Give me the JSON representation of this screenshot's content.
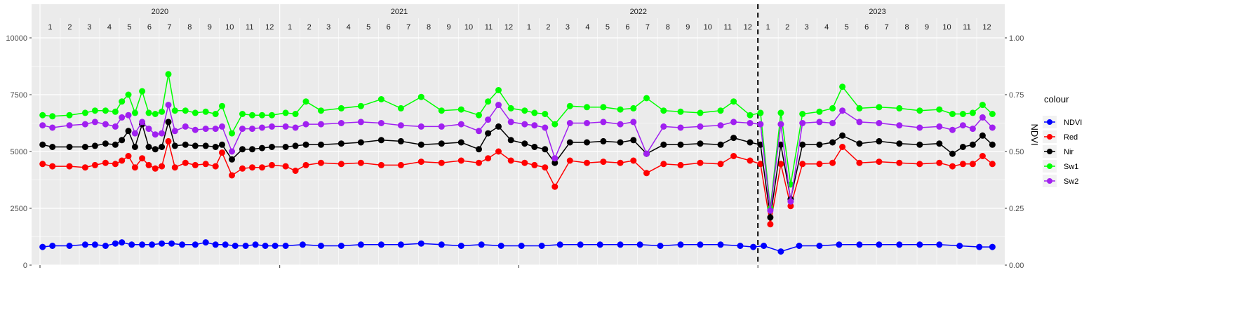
{
  "chart_data": {
    "type": "line",
    "ylabel": "",
    "y2label": "NDVI",
    "ylim": [
      0,
      10000
    ],
    "y2lim": [
      0,
      1
    ],
    "y_ticks": [
      "0",
      "2500",
      "5000",
      "7500",
      "10000"
    ],
    "y2_ticks": [
      "0.00",
      "0.25",
      "0.50",
      "0.75",
      "1.00"
    ],
    "years": [
      "2020",
      "2021",
      "2022",
      "2023"
    ],
    "months": [
      "1",
      "2",
      "3",
      "4",
      "5",
      "6",
      "7",
      "8",
      "9",
      "10",
      "11",
      "12"
    ],
    "x_start": "2020-01-01",
    "x_end": "2023-12-31",
    "vline": "2023-01-01",
    "legend_title": "colour",
    "legend_position": "right",
    "grid": true,
    "series": [
      {
        "name": "NDVI",
        "color": "#0000ff",
        "dates": [
          "2020-01-05",
          "2020-01-20",
          "2020-02-15",
          "2020-03-10",
          "2020-03-25",
          "2020-04-10",
          "2020-04-25",
          "2020-05-05",
          "2020-05-20",
          "2020-06-05",
          "2020-06-20",
          "2020-07-05",
          "2020-07-20",
          "2020-08-05",
          "2020-08-25",
          "2020-09-10",
          "2020-09-25",
          "2020-10-10",
          "2020-10-25",
          "2020-11-10",
          "2020-11-25",
          "2020-12-10",
          "2020-12-25",
          "2021-01-10",
          "2021-02-05",
          "2021-03-05",
          "2021-04-05",
          "2021-05-05",
          "2021-06-05",
          "2021-07-05",
          "2021-08-05",
          "2021-09-05",
          "2021-10-05",
          "2021-11-05",
          "2021-12-05",
          "2022-01-05",
          "2022-02-05",
          "2022-03-05",
          "2022-04-05",
          "2022-05-05",
          "2022-06-05",
          "2022-07-05",
          "2022-08-05",
          "2022-09-05",
          "2022-10-05",
          "2022-11-05",
          "2022-12-05",
          "2022-12-25",
          "2023-01-10",
          "2023-02-05",
          "2023-03-05",
          "2023-04-05",
          "2023-05-05",
          "2023-06-05",
          "2023-07-05",
          "2023-08-05",
          "2023-09-05",
          "2023-10-05",
          "2023-11-05",
          "2023-12-05",
          "2023-12-25"
        ],
        "values": [
          0.08,
          0.085,
          0.085,
          0.09,
          0.09,
          0.085,
          0.095,
          0.1,
          0.09,
          0.09,
          0.09,
          0.095,
          0.095,
          0.09,
          0.09,
          0.1,
          0.09,
          0.09,
          0.085,
          0.085,
          0.09,
          0.085,
          0.085,
          0.085,
          0.09,
          0.085,
          0.085,
          0.09,
          0.09,
          0.09,
          0.095,
          0.09,
          0.085,
          0.09,
          0.085,
          0.085,
          0.085,
          0.09,
          0.09,
          0.09,
          0.09,
          0.09,
          0.085,
          0.09,
          0.09,
          0.09,
          0.085,
          0.08,
          0.085,
          0.06,
          0.085,
          0.085,
          0.09,
          0.09,
          0.09,
          0.09,
          0.09,
          0.09,
          0.085,
          0.08,
          0.08
        ]
      },
      {
        "name": "Red",
        "color": "#ff0000",
        "dates": [
          "2020-01-05",
          "2020-01-20",
          "2020-02-15",
          "2020-03-10",
          "2020-03-25",
          "2020-04-10",
          "2020-04-25",
          "2020-05-05",
          "2020-05-15",
          "2020-05-25",
          "2020-06-05",
          "2020-06-15",
          "2020-06-25",
          "2020-07-05",
          "2020-07-15",
          "2020-07-25",
          "2020-08-10",
          "2020-08-25",
          "2020-09-10",
          "2020-09-25",
          "2020-10-05",
          "2020-10-20",
          "2020-11-05",
          "2020-11-20",
          "2020-12-05",
          "2020-12-20",
          "2021-01-10",
          "2021-01-25",
          "2021-02-10",
          "2021-03-05",
          "2021-04-05",
          "2021-05-05",
          "2021-06-05",
          "2021-07-05",
          "2021-08-05",
          "2021-09-05",
          "2021-10-05",
          "2021-11-01",
          "2021-11-15",
          "2021-12-01",
          "2021-12-20",
          "2022-01-10",
          "2022-01-25",
          "2022-02-10",
          "2022-02-25",
          "2022-03-20",
          "2022-04-15",
          "2022-05-10",
          "2022-06-05",
          "2022-06-25",
          "2022-07-15",
          "2022-08-10",
          "2022-09-05",
          "2022-10-05",
          "2022-11-05",
          "2022-11-25",
          "2022-12-20",
          "2023-01-05",
          "2023-01-20",
          "2023-02-05",
          "2023-02-20",
          "2023-03-10",
          "2023-04-05",
          "2023-04-25",
          "2023-05-10",
          "2023-06-05",
          "2023-07-05",
          "2023-08-05",
          "2023-09-05",
          "2023-10-05",
          "2023-10-25",
          "2023-11-10",
          "2023-11-25",
          "2023-12-10",
          "2023-12-25"
        ],
        "values": [
          4450,
          4350,
          4350,
          4300,
          4400,
          4500,
          4450,
          4600,
          4800,
          4300,
          4700,
          4400,
          4250,
          4350,
          5450,
          4300,
          4500,
          4400,
          4450,
          4350,
          4950,
          3950,
          4250,
          4300,
          4300,
          4400,
          4350,
          4150,
          4400,
          4500,
          4450,
          4500,
          4400,
          4400,
          4550,
          4500,
          4600,
          4500,
          4700,
          5000,
          4600,
          4500,
          4400,
          4300,
          3450,
          4600,
          4500,
          4550,
          4500,
          4600,
          4050,
          4450,
          4400,
          4500,
          4450,
          4800,
          4600,
          4450,
          1800,
          4450,
          2600,
          4450,
          4450,
          4500,
          5200,
          4500,
          4550,
          4500,
          4450,
          4500,
          4350,
          4450,
          4450,
          4800,
          4450
        ]
      },
      {
        "name": "Nir",
        "color": "#000000",
        "dates": [
          "2020-01-05",
          "2020-01-20",
          "2020-02-15",
          "2020-03-10",
          "2020-03-25",
          "2020-04-10",
          "2020-04-25",
          "2020-05-05",
          "2020-05-15",
          "2020-05-25",
          "2020-06-05",
          "2020-06-15",
          "2020-06-25",
          "2020-07-05",
          "2020-07-15",
          "2020-07-25",
          "2020-08-10",
          "2020-08-25",
          "2020-09-10",
          "2020-09-25",
          "2020-10-05",
          "2020-10-20",
          "2020-11-05",
          "2020-11-20",
          "2020-12-05",
          "2020-12-20",
          "2021-01-10",
          "2021-01-25",
          "2021-02-10",
          "2021-03-05",
          "2021-04-05",
          "2021-05-05",
          "2021-06-05",
          "2021-07-05",
          "2021-08-05",
          "2021-09-05",
          "2021-10-05",
          "2021-11-01",
          "2021-11-15",
          "2021-12-01",
          "2021-12-20",
          "2022-01-10",
          "2022-01-25",
          "2022-02-10",
          "2022-02-25",
          "2022-03-20",
          "2022-04-15",
          "2022-05-10",
          "2022-06-05",
          "2022-06-25",
          "2022-07-15",
          "2022-08-10",
          "2022-09-05",
          "2022-10-05",
          "2022-11-05",
          "2022-11-25",
          "2022-12-20",
          "2023-01-05",
          "2023-01-20",
          "2023-02-05",
          "2023-02-20",
          "2023-03-10",
          "2023-04-05",
          "2023-04-25",
          "2023-05-10",
          "2023-06-05",
          "2023-07-05",
          "2023-08-05",
          "2023-09-05",
          "2023-10-05",
          "2023-10-25",
          "2023-11-10",
          "2023-11-25",
          "2023-12-10",
          "2023-12-25"
        ],
        "values": [
          5300,
          5200,
          5200,
          5200,
          5250,
          5350,
          5300,
          5500,
          5900,
          5200,
          6200,
          5200,
          5100,
          5200,
          6300,
          5250,
          5300,
          5250,
          5250,
          5200,
          5300,
          4650,
          5100,
          5100,
          5150,
          5200,
          5200,
          5250,
          5300,
          5300,
          5350,
          5400,
          5500,
          5450,
          5300,
          5350,
          5400,
          5100,
          5800,
          6100,
          5500,
          5350,
          5200,
          5100,
          4500,
          5400,
          5400,
          5450,
          5400,
          5500,
          4900,
          5300,
          5300,
          5350,
          5300,
          5600,
          5400,
          5300,
          2100,
          5300,
          2900,
          5300,
          5300,
          5400,
          5700,
          5350,
          5450,
          5350,
          5300,
          5350,
          4900,
          5200,
          5300,
          5700,
          5300
        ]
      },
      {
        "name": "Sw1",
        "color": "#00ff00",
        "dates": [
          "2020-01-05",
          "2020-01-20",
          "2020-02-15",
          "2020-03-10",
          "2020-03-25",
          "2020-04-10",
          "2020-04-25",
          "2020-05-05",
          "2020-05-15",
          "2020-05-25",
          "2020-06-05",
          "2020-06-15",
          "2020-06-25",
          "2020-07-05",
          "2020-07-15",
          "2020-07-25",
          "2020-08-10",
          "2020-08-25",
          "2020-09-10",
          "2020-09-25",
          "2020-10-05",
          "2020-10-20",
          "2020-11-05",
          "2020-11-20",
          "2020-12-05",
          "2020-12-20",
          "2021-01-10",
          "2021-01-25",
          "2021-02-10",
          "2021-03-05",
          "2021-04-05",
          "2021-05-05",
          "2021-06-05",
          "2021-07-05",
          "2021-08-05",
          "2021-09-05",
          "2021-10-05",
          "2021-11-01",
          "2021-11-15",
          "2021-12-01",
          "2021-12-20",
          "2022-01-10",
          "2022-01-25",
          "2022-02-10",
          "2022-02-25",
          "2022-03-20",
          "2022-04-15",
          "2022-05-10",
          "2022-06-05",
          "2022-06-25",
          "2022-07-15",
          "2022-08-10",
          "2022-09-05",
          "2022-10-05",
          "2022-11-05",
          "2022-11-25",
          "2022-12-20",
          "2023-01-05",
          "2023-01-20",
          "2023-02-05",
          "2023-02-20",
          "2023-03-10",
          "2023-04-05",
          "2023-04-25",
          "2023-05-10",
          "2023-06-05",
          "2023-07-05",
          "2023-08-05",
          "2023-09-05",
          "2023-10-05",
          "2023-10-25",
          "2023-11-10",
          "2023-11-25",
          "2023-12-10",
          "2023-12-25"
        ],
        "values": [
          6600,
          6550,
          6600,
          6700,
          6800,
          6800,
          6750,
          7200,
          7500,
          6700,
          7650,
          6700,
          6650,
          6750,
          8400,
          6800,
          6800,
          6700,
          6750,
          6650,
          7000,
          5800,
          6650,
          6600,
          6600,
          6600,
          6700,
          6650,
          7200,
          6800,
          6900,
          7000,
          7300,
          6900,
          7400,
          6800,
          6850,
          6600,
          7200,
          7700,
          6900,
          6800,
          6700,
          6650,
          6200,
          7000,
          6950,
          6950,
          6850,
          6900,
          7350,
          6800,
          6750,
          6700,
          6800,
          7200,
          6600,
          6700,
          2500,
          6700,
          3550,
          6650,
          6750,
          6900,
          7850,
          6900,
          6950,
          6900,
          6800,
          6850,
          6650,
          6650,
          6700,
          7050,
          6650
        ]
      },
      {
        "name": "Sw2",
        "color": "#a020f0",
        "dates": [
          "2020-01-05",
          "2020-01-20",
          "2020-02-15",
          "2020-03-10",
          "2020-03-25",
          "2020-04-10",
          "2020-04-25",
          "2020-05-05",
          "2020-05-15",
          "2020-05-25",
          "2020-06-05",
          "2020-06-15",
          "2020-06-25",
          "2020-07-05",
          "2020-07-15",
          "2020-07-25",
          "2020-08-10",
          "2020-08-25",
          "2020-09-10",
          "2020-09-25",
          "2020-10-05",
          "2020-10-20",
          "2020-11-05",
          "2020-11-20",
          "2020-12-05",
          "2020-12-20",
          "2021-01-10",
          "2021-01-25",
          "2021-02-10",
          "2021-03-05",
          "2021-04-05",
          "2021-05-05",
          "2021-06-05",
          "2021-07-05",
          "2021-08-05",
          "2021-09-05",
          "2021-10-05",
          "2021-11-01",
          "2021-11-15",
          "2021-12-01",
          "2021-12-20",
          "2022-01-10",
          "2022-01-25",
          "2022-02-10",
          "2022-02-25",
          "2022-03-20",
          "2022-04-15",
          "2022-05-10",
          "2022-06-05",
          "2022-06-25",
          "2022-07-15",
          "2022-08-10",
          "2022-09-05",
          "2022-10-05",
          "2022-11-05",
          "2022-11-25",
          "2022-12-20",
          "2023-01-05",
          "2023-01-20",
          "2023-02-05",
          "2023-02-20",
          "2023-03-10",
          "2023-04-05",
          "2023-04-25",
          "2023-05-10",
          "2023-06-05",
          "2023-07-05",
          "2023-08-05",
          "2023-09-05",
          "2023-10-05",
          "2023-10-25",
          "2023-11-10",
          "2023-11-25",
          "2023-12-10",
          "2023-12-25"
        ],
        "values": [
          6150,
          6050,
          6150,
          6200,
          6300,
          6200,
          6100,
          6500,
          6600,
          5800,
          6300,
          6000,
          5750,
          5800,
          7050,
          5900,
          6100,
          5950,
          6000,
          6000,
          6100,
          5000,
          6000,
          6000,
          6050,
          6100,
          6100,
          6050,
          6200,
          6200,
          6250,
          6300,
          6250,
          6150,
          6100,
          6100,
          6200,
          5900,
          6400,
          7050,
          6300,
          6200,
          6150,
          6050,
          4700,
          6250,
          6250,
          6300,
          6200,
          6300,
          4900,
          6100,
          6050,
          6100,
          6150,
          6300,
          6250,
          6200,
          2400,
          6200,
          2800,
          6250,
          6300,
          6250,
          6800,
          6300,
          6250,
          6150,
          6050,
          6100,
          5950,
          6150,
          6000,
          6500,
          6050
        ]
      }
    ]
  }
}
